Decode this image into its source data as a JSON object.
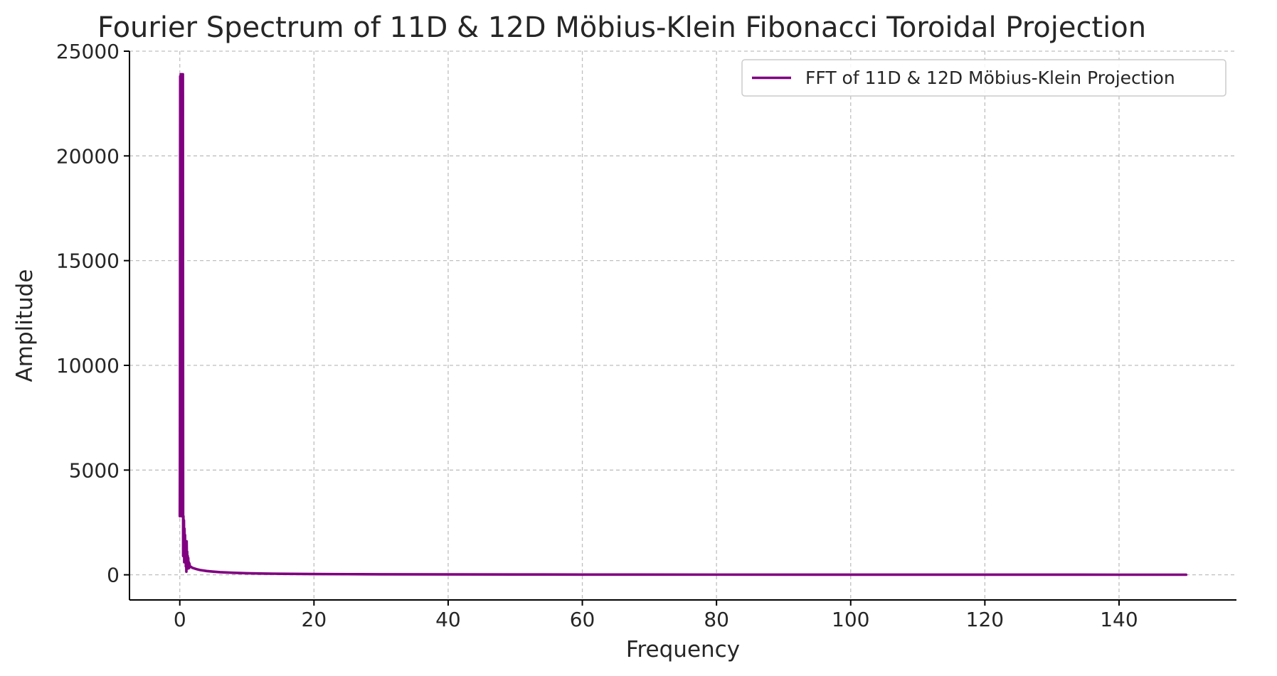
{
  "chart_data": {
    "type": "line",
    "title": "Fourier Spectrum of 11D & 12D Möbius-Klein Fibonacci Toroidal Projection",
    "xlabel": "Frequency",
    "ylabel": "Amplitude",
    "xlim": [
      -7.5,
      157.5
    ],
    "ylim": [
      -1200,
      25000
    ],
    "xticks": [
      0,
      20,
      40,
      60,
      80,
      100,
      120,
      140
    ],
    "yticks": [
      0,
      5000,
      10000,
      15000,
      20000,
      25000
    ],
    "grid": true,
    "legend_position": "top-right",
    "series": [
      {
        "name": "FFT of 11D & 12D Möbius-Klein Projection",
        "color": "#800080",
        "x": [
          0,
          0.02,
          0.06,
          0.1,
          0.14,
          0.18,
          0.22,
          0.26,
          0.3,
          0.34,
          0.38,
          0.42,
          0.46,
          0.5,
          0.54,
          0.58,
          0.62,
          0.66,
          0.7,
          0.74,
          0.78,
          0.82,
          0.86,
          0.9,
          0.94,
          0.98,
          1.02,
          1.06,
          1.1,
          1.14,
          1.18,
          1.22,
          1.26,
          1.3,
          1.34,
          1.38,
          1.42,
          1.5,
          1.6,
          1.8,
          2,
          2.5,
          3,
          4,
          5,
          6,
          8,
          10,
          12,
          15,
          20,
          25,
          30,
          40,
          50,
          60,
          80,
          100,
          120,
          140,
          150
        ],
        "y": [
          2800,
          5500,
          23800,
          3000,
          23900,
          6000,
          23800,
          2800,
          23900,
          3200,
          23800,
          2800,
          23900,
          900,
          2800,
          1500,
          2600,
          600,
          2200,
          1200,
          1900,
          700,
          1500,
          400,
          1300,
          150,
          1600,
          800,
          1100,
          450,
          900,
          300,
          800,
          350,
          600,
          320,
          550,
          420,
          390,
          350,
          320,
          270,
          230,
          180,
          150,
          125,
          95,
          75,
          62,
          50,
          38,
          30,
          25,
          19,
          15,
          12,
          9,
          7,
          6,
          5,
          5
        ]
      }
    ]
  }
}
